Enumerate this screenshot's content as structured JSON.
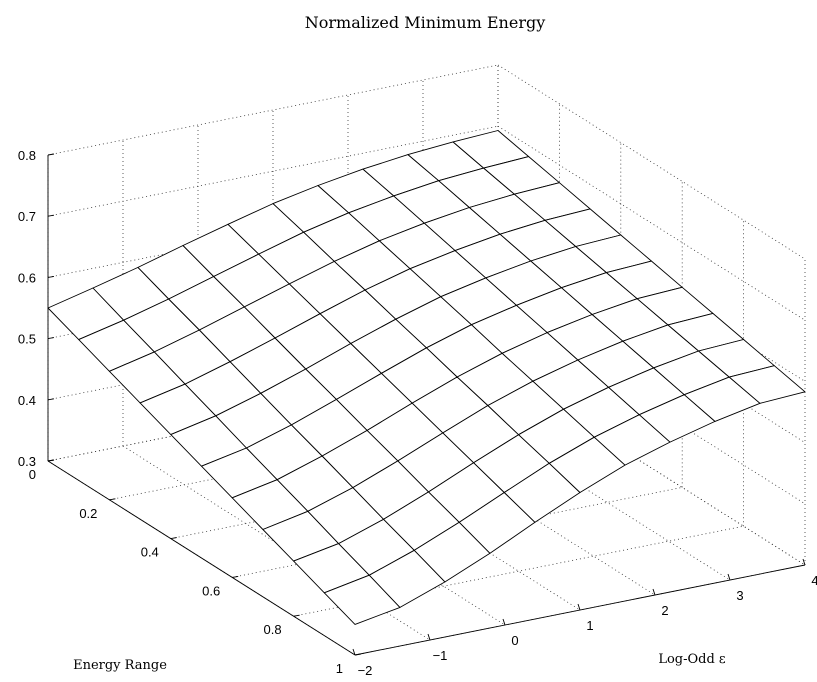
{
  "chart_data": {
    "type": "surface",
    "title": "Normalized Minimum Energy",
    "xlabel": "Log-Odd ε",
    "ylabel": "Energy Range",
    "zlabel": "",
    "xlim": [
      -2,
      4
    ],
    "ylim": [
      0,
      1
    ],
    "zlim": [
      0.3,
      0.8
    ],
    "xticks": [
      "−2",
      "−1",
      "0",
      "1",
      "2",
      "3",
      "4"
    ],
    "yticks": [
      "0",
      "0.2",
      "0.4",
      "0.6",
      "0.8",
      "1"
    ],
    "zticks": [
      "0.3",
      "0.4",
      "0.5",
      "0.6",
      "0.7",
      "0.8"
    ],
    "grid": true,
    "x": [
      -2,
      -1.4,
      -0.8,
      -0.2,
      0.4,
      1,
      1.6,
      2.2,
      2.8,
      3.4,
      4
    ],
    "y": [
      0,
      0.1,
      0.2,
      0.3,
      0.4,
      0.5,
      0.6,
      0.7,
      0.8,
      0.9,
      1
    ],
    "z": [
      [
        0.55,
        0.568,
        0.587,
        0.608,
        0.628,
        0.647,
        0.662,
        0.674,
        0.683,
        0.689,
        0.693
      ],
      [
        0.53,
        0.547,
        0.567,
        0.589,
        0.611,
        0.632,
        0.649,
        0.662,
        0.672,
        0.678,
        0.682
      ],
      [
        0.51,
        0.527,
        0.548,
        0.571,
        0.594,
        0.616,
        0.635,
        0.649,
        0.66,
        0.667,
        0.671
      ],
      [
        0.49,
        0.506,
        0.528,
        0.552,
        0.577,
        0.601,
        0.621,
        0.636,
        0.648,
        0.656,
        0.66
      ],
      [
        0.47,
        0.486,
        0.508,
        0.533,
        0.56,
        0.585,
        0.607,
        0.623,
        0.636,
        0.645,
        0.649
      ],
      [
        0.45,
        0.465,
        0.488,
        0.515,
        0.543,
        0.57,
        0.593,
        0.61,
        0.624,
        0.634,
        0.638
      ],
      [
        0.43,
        0.445,
        0.469,
        0.496,
        0.526,
        0.554,
        0.578,
        0.597,
        0.612,
        0.623,
        0.627
      ],
      [
        0.41,
        0.425,
        0.449,
        0.478,
        0.509,
        0.539,
        0.564,
        0.584,
        0.6,
        0.612,
        0.616
      ],
      [
        0.39,
        0.404,
        0.429,
        0.459,
        0.492,
        0.523,
        0.55,
        0.571,
        0.588,
        0.601,
        0.605
      ],
      [
        0.37,
        0.384,
        0.41,
        0.441,
        0.475,
        0.508,
        0.536,
        0.558,
        0.576,
        0.59,
        0.594
      ],
      [
        0.35,
        0.363,
        0.39,
        0.422,
        0.458,
        0.492,
        0.522,
        0.545,
        0.564,
        0.579,
        0.583
      ]
    ]
  }
}
